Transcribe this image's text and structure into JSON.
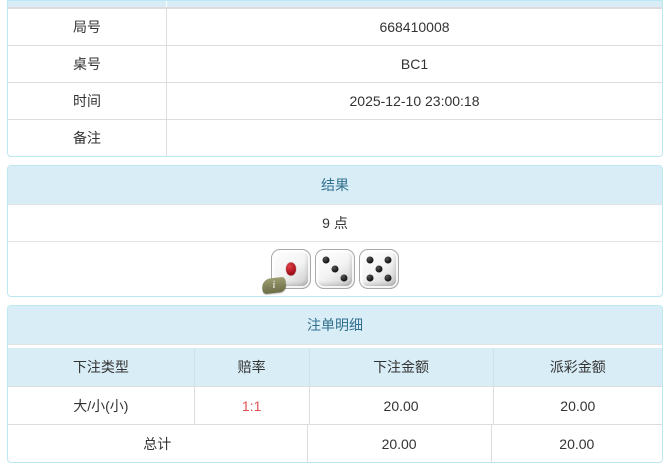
{
  "colors": {
    "accent_bg": "#d9edf7",
    "accent_border": "#bce8f1",
    "heading_text": "#31708f",
    "cell_border": "#dddddd",
    "body_text": "#333333",
    "odds_red": "#e25353",
    "die_pip_red": "#a50f18",
    "badge_olive": "#6b6b45"
  },
  "info_table": {
    "rows": [
      {
        "label": "局号",
        "value": "668410008"
      },
      {
        "label": "桌号",
        "value": "BC1"
      },
      {
        "label": "时间",
        "value": "2025-12-10 23:00:18"
      },
      {
        "label": "备注",
        "value": ""
      }
    ]
  },
  "result_panel": {
    "title": "结果",
    "points": "9 点",
    "dice": [
      1,
      3,
      5
    ],
    "info_badge": "i"
  },
  "bets_panel": {
    "title": "注单明细",
    "columns": [
      "下注类型",
      "赔率",
      "下注金额",
      "派彩金额"
    ],
    "rows": [
      {
        "type": "大/小(小)",
        "odds": "1:1",
        "bet": "20.00",
        "payout": "20.00"
      }
    ],
    "total": {
      "label": "总计",
      "bet": "20.00",
      "payout": "20.00"
    }
  }
}
